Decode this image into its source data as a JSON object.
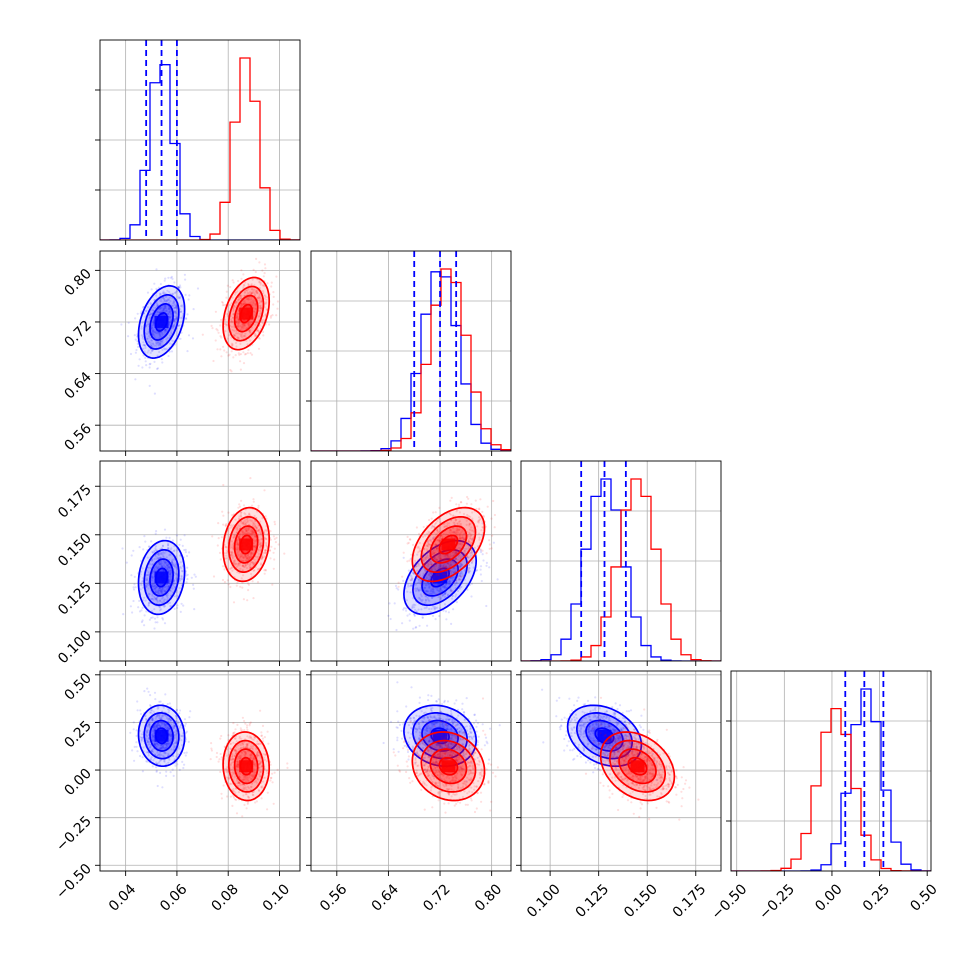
{
  "chart_data": {
    "type": "corner",
    "title": "",
    "parameters": [
      {
        "ticks": [
          0.04,
          0.06,
          0.08,
          0.1
        ],
        "tick_labels": [
          "0.04",
          "0.06",
          "0.08",
          "0.10"
        ],
        "range": [
          0.03,
          0.108
        ]
      },
      {
        "ticks": [
          0.56,
          0.64,
          0.72,
          0.8
        ],
        "tick_labels": [
          "0.56",
          "0.64",
          "0.72",
          "0.80"
        ],
        "range": [
          0.52,
          0.83
        ]
      },
      {
        "ticks": [
          0.1,
          0.125,
          0.15,
          0.175
        ],
        "tick_labels": [
          "0.100",
          "0.125",
          "0.150",
          "0.175"
        ],
        "range": [
          0.085,
          0.188
        ]
      },
      {
        "ticks": [
          -0.5,
          -0.25,
          0.0,
          0.25,
          0.5
        ],
        "tick_labels": [
          "−0.50",
          "−0.25",
          "0.00",
          "0.25",
          "0.50"
        ],
        "range": [
          -0.53,
          0.52
        ]
      }
    ],
    "series": [
      {
        "color": "#0000ff",
        "mean": [
          0.054,
          0.72,
          0.128,
          0.18
        ],
        "sigma": [
          0.0045,
          0.028,
          0.0095,
          0.08
        ],
        "quantiles": [
          [
            0.048,
            0.054,
            0.06
          ],
          [
            0.68,
            0.72,
            0.745
          ],
          [
            0.116,
            0.128,
            0.139
          ],
          [
            0.07,
            0.17,
            0.27
          ]
        ]
      },
      {
        "color": "#ff0000",
        "mean": [
          0.087,
          0.733,
          0.145,
          0.02
        ],
        "sigma": [
          0.0045,
          0.028,
          0.0095,
          0.09
        ],
        "quantiles": []
      }
    ],
    "correlations": [
      {
        "i": 1,
        "j": 0,
        "rho": 0.35
      },
      {
        "i": 2,
        "j": 0,
        "rho": 0.15
      },
      {
        "i": 2,
        "j": 1,
        "rho": 0.45
      },
      {
        "i": 3,
        "j": 0,
        "rho": -0.05
      },
      {
        "i": 3,
        "j": 1,
        "rho": -0.15
      },
      {
        "i": 3,
        "j": 2,
        "rho": -0.3
      }
    ],
    "grid": true,
    "axis_labels": []
  },
  "colors": {
    "series_a": "#0000ff",
    "series_b": "#ff0000",
    "grid": "#b0b0b0"
  }
}
